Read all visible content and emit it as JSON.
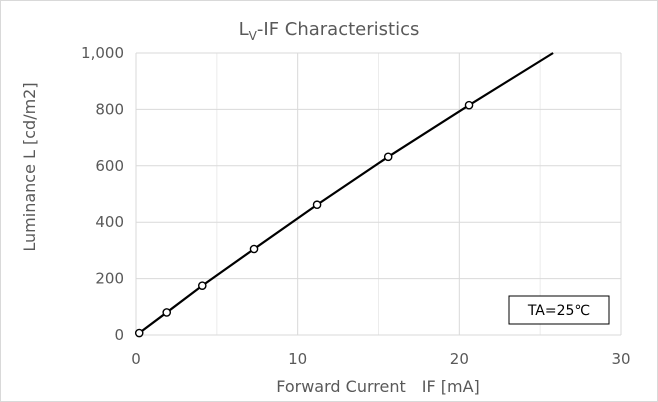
{
  "chart_data": {
    "type": "line",
    "title_main": "L",
    "title_sub": "V",
    "title_rest": "-IF Characteristics",
    "xlabel": "Forward Current　IF [mA]",
    "ylabel": "Luminance L [cd/m2]",
    "xlim": [
      0,
      30
    ],
    "ylim": [
      0,
      1000
    ],
    "x_major_ticks": [
      0,
      10,
      20,
      30
    ],
    "x_minor_ticks": [
      5,
      15,
      25
    ],
    "y_ticks": [
      0,
      200,
      400,
      600,
      800,
      1000
    ],
    "x_tick_labels": [
      "0",
      "10",
      "20",
      "30"
    ],
    "y_tick_labels": [
      "0",
      "200",
      "400",
      "600",
      "800",
      "1,000"
    ],
    "grid": true,
    "annotation": "TA=25℃",
    "series": [
      {
        "points": [
          {
            "x": 0.2,
            "y": 7
          },
          {
            "x": 1.9,
            "y": 80
          },
          {
            "x": 4.1,
            "y": 175
          },
          {
            "x": 7.3,
            "y": 305
          },
          {
            "x": 11.2,
            "y": 462
          },
          {
            "x": 15.6,
            "y": 632
          },
          {
            "x": 20.6,
            "y": 815
          }
        ],
        "trend_end": {
          "x": 25.8,
          "y": 1000
        }
      }
    ],
    "line_color": "#000000",
    "grid_color": "#d9d9d9"
  }
}
